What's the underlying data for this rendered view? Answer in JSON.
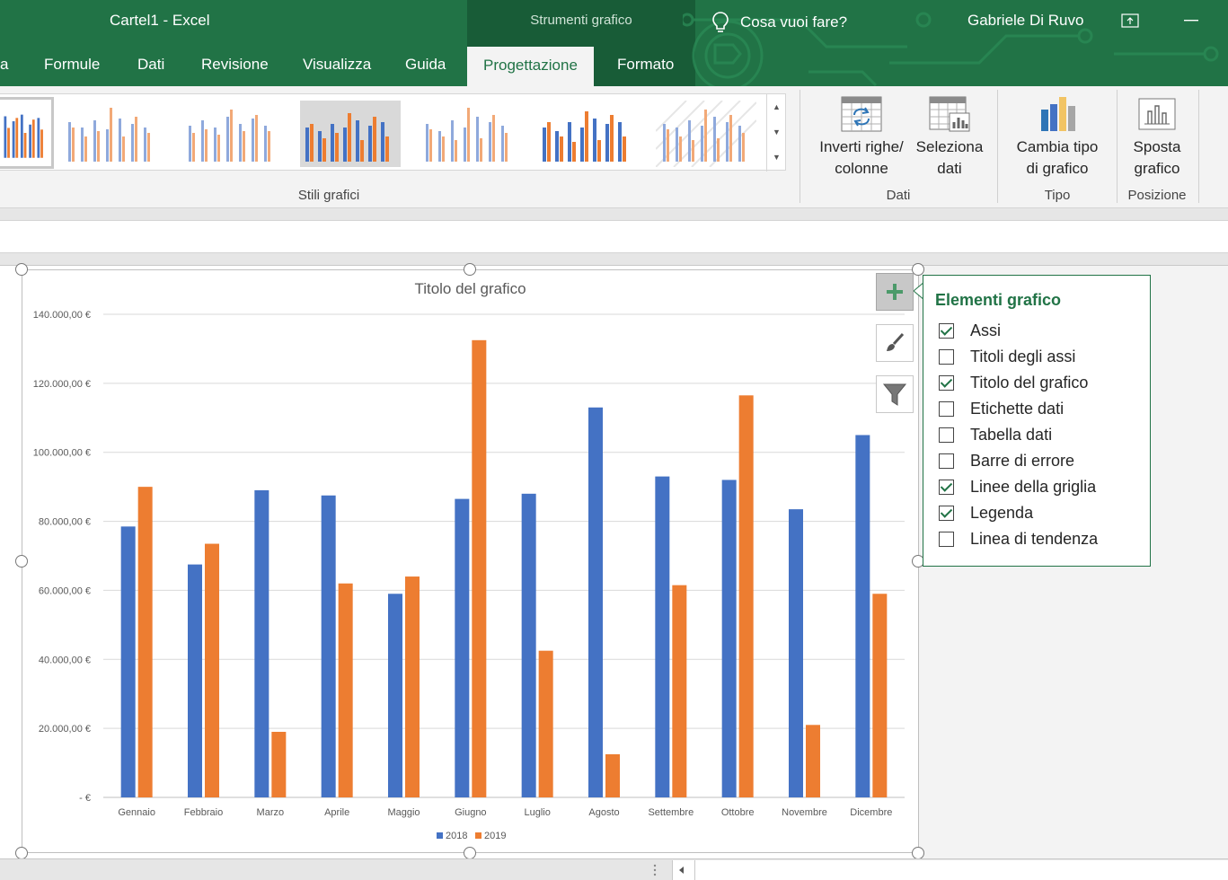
{
  "window": {
    "title": "Cartel1  -  Excel",
    "contextual_title": "Strumenti grafico",
    "user": "Gabriele Di Ruvo"
  },
  "tabs": [
    {
      "label": "a",
      "active": false
    },
    {
      "label": "Formule",
      "active": false
    },
    {
      "label": "Dati",
      "active": false
    },
    {
      "label": "Revisione",
      "active": false
    },
    {
      "label": "Visualizza",
      "active": false
    },
    {
      "label": "Guida",
      "active": false
    },
    {
      "label": "Progettazione",
      "active": true
    },
    {
      "label": "Formato",
      "active": false
    }
  ],
  "tell_me": "Cosa vuoi fare?",
  "ribbon": {
    "styles_group_label": "Stili grafici",
    "data_group_label": "Dati",
    "type_group_label": "Tipo",
    "position_group_label": "Posizione",
    "switch_rows_cols": {
      "line1": "Inverti righe/",
      "line2": "colonne"
    },
    "select_data": {
      "line1": "Seleziona",
      "line2": "dati"
    },
    "change_chart_type": {
      "line1": "Cambia tipo",
      "line2": "di grafico"
    },
    "move_chart": {
      "line1": "Sposta",
      "line2": "grafico"
    }
  },
  "chart_panel": {
    "title": "Elementi grafico",
    "items": [
      {
        "label": "Assi",
        "checked": true
      },
      {
        "label": "Titoli degli assi",
        "checked": false
      },
      {
        "label": "Titolo del grafico",
        "checked": true
      },
      {
        "label": "Etichette dati",
        "checked": false
      },
      {
        "label": "Tabella dati",
        "checked": false
      },
      {
        "label": "Barre di errore",
        "checked": false
      },
      {
        "label": "Linee della griglia",
        "checked": true
      },
      {
        "label": "Legenda",
        "checked": true
      },
      {
        "label": "Linea di tendenza",
        "checked": false
      }
    ]
  },
  "chart_data": {
    "type": "bar",
    "title": "Titolo del grafico",
    "xlabel": "",
    "ylabel": "",
    "ylim": [
      0,
      140000
    ],
    "yticks": [
      0,
      20000,
      40000,
      60000,
      80000,
      100000,
      120000,
      140000
    ],
    "ytick_labels": [
      "-  €",
      "20.000,00 €",
      "40.000,00 €",
      "60.000,00 €",
      "80.000,00 €",
      "100.000,00 €",
      "120.000,00 €",
      "140.000,00 €"
    ],
    "grid": true,
    "legend_position": "bottom",
    "categories": [
      "Gennaio",
      "Febbraio",
      "Marzo",
      "Aprile",
      "Maggio",
      "Giugno",
      "Luglio",
      "Agosto",
      "Settembre",
      "Ottobre",
      "Novembre",
      "Dicembre"
    ],
    "series": [
      {
        "name": "2018",
        "color": "#4472c4",
        "values": [
          78500,
          67500,
          89000,
          87500,
          59000,
          86500,
          88000,
          113000,
          93000,
          92000,
          83500,
          105000
        ]
      },
      {
        "name": "2019",
        "color": "#ed7d31",
        "values": [
          90000,
          73500,
          19000,
          62000,
          64000,
          132500,
          42500,
          12500,
          61500,
          116500,
          21000,
          59000
        ]
      }
    ]
  },
  "colors": {
    "excel_green": "#217346",
    "contextual_green": "#185c37",
    "series_2018": "#4472c4",
    "series_2019": "#ed7d31"
  }
}
